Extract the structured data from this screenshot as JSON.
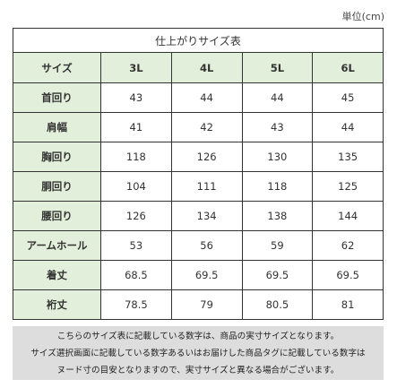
{
  "unit_label": "単位(cm)",
  "table": {
    "title": "仕上がりサイズ表",
    "corner": "サイズ",
    "sizes": [
      "3L",
      "4L",
      "5L",
      "6L"
    ],
    "rows": [
      {
        "label": "首回り",
        "values": [
          "43",
          "44",
          "44",
          "45"
        ]
      },
      {
        "label": "肩幅",
        "values": [
          "41",
          "42",
          "43",
          "44"
        ]
      },
      {
        "label": "胸回り",
        "values": [
          "118",
          "126",
          "130",
          "135"
        ]
      },
      {
        "label": "胴回り",
        "values": [
          "104",
          "111",
          "118",
          "125"
        ]
      },
      {
        "label": "腰回り",
        "values": [
          "126",
          "134",
          "138",
          "144"
        ]
      },
      {
        "label": "アームホール",
        "values": [
          "53",
          "56",
          "59",
          "62"
        ]
      },
      {
        "label": "着丈",
        "values": [
          "68.5",
          "69.5",
          "69.5",
          "69.5"
        ]
      },
      {
        "label": "裄丈",
        "values": [
          "78.5",
          "79",
          "80.5",
          "81"
        ]
      }
    ]
  },
  "note": {
    "lines": [
      "こちらのサイズ表に記載している数字は、商品の実寸サイズとなります。",
      "サイズ選択画面に記載している数字あるいはお届けした商品タグに記載している数字は",
      "ヌード寸の目安となりますので、実寸サイズと異なる場合がございます。"
    ]
  },
  "colors": {
    "header_bg": "#e2efda",
    "border": "#333333",
    "note_bg": "#dddddd"
  }
}
